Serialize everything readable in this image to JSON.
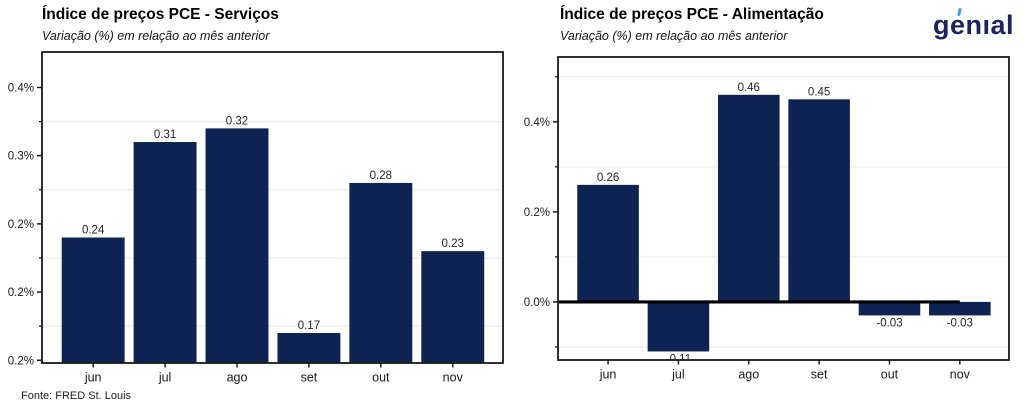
{
  "logo": {
    "prefix": "g",
    "accent_letter": "e",
    "suffix": "nıal",
    "text_color": "#1f2461",
    "accent_color": "#3d9fe0"
  },
  "footer": {
    "source": "Fonte: FRED St. Louis"
  },
  "colors": {
    "bar": "#0e2352",
    "axis": "#1a1a1a",
    "grid": "#e9e9e9",
    "zero_line": "#000000",
    "tick_label": "#1a1a1a",
    "value_label": "#262626"
  },
  "chart_data": [
    {
      "type": "bar",
      "title": "Índice de preços PCE - Serviços",
      "subtitle": "Variação (%) em relação ao mês anterior",
      "categories": [
        "jun",
        "jul",
        "ago",
        "set",
        "out",
        "nov"
      ],
      "values": [
        0.24,
        0.31,
        0.32,
        0.17,
        0.28,
        0.23
      ],
      "bar_labels": [
        "0.24",
        "0.31",
        "0.32",
        "0.17",
        "0.28",
        "0.23"
      ],
      "xlabel": "",
      "ylabel": "",
      "ylim": [
        0.148,
        0.376
      ],
      "yticks": [
        {
          "value": 0.15,
          "label": "0.2%"
        },
        {
          "value": 0.2,
          "label": "0.2%"
        },
        {
          "value": 0.25,
          "label": "0.2%"
        },
        {
          "value": 0.3,
          "label": "0.3%"
        },
        {
          "value": 0.35,
          "label": "0.4%"
        }
      ],
      "yminorticks": [
        0.175,
        0.225,
        0.275,
        0.325
      ],
      "grid": "minor-horizontal-only",
      "legend": "none",
      "zero_line": null
    },
    {
      "type": "bar",
      "title": "Índice de preços PCE - Alimentação",
      "subtitle": "Variação (%) em relação ao mês anterior",
      "categories": [
        "jun",
        "jul",
        "ago",
        "set",
        "out",
        "nov"
      ],
      "values": [
        0.26,
        -0.11,
        0.46,
        0.45,
        -0.03,
        -0.03
      ],
      "bar_labels": [
        "0.26",
        "-0.11",
        "0.46",
        "0.45",
        "-0.03",
        "-0.03"
      ],
      "xlabel": "",
      "ylabel": "",
      "ylim": [
        -0.129,
        0.544
      ],
      "yticks": [
        {
          "value": 0.0,
          "label": "0.0%"
        },
        {
          "value": 0.2,
          "label": "0.2%"
        },
        {
          "value": 0.4,
          "label": "0.4%"
        }
      ],
      "yminorticks": [
        -0.1,
        0.1,
        0.3,
        0.5
      ],
      "grid": "minor-horizontal-only",
      "legend": "none",
      "zero_line": {
        "value": 0,
        "end_category_index": 5
      }
    }
  ]
}
